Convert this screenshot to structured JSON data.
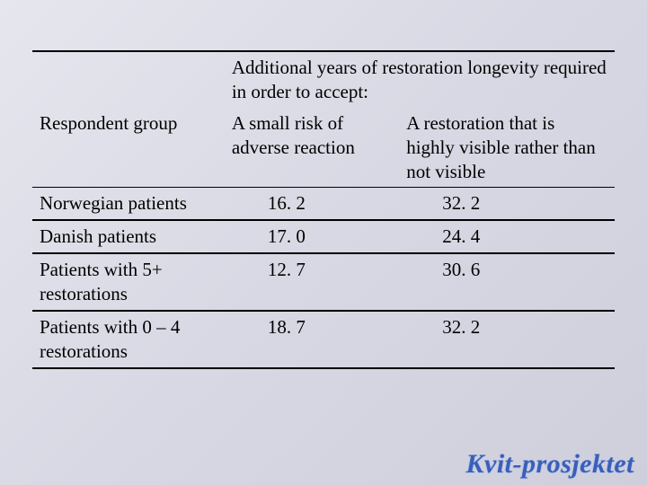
{
  "colors": {
    "background_gradient_start": "#e6e6ee",
    "background_gradient_mid": "#d8d8e4",
    "background_gradient_end": "#cfcfdc",
    "text": "#000000",
    "rule": "#000000",
    "watermark": "#3a5fb8",
    "watermark_outline": "#b8c4e6"
  },
  "typography": {
    "body_font": "Times New Roman",
    "body_size_pt": 16,
    "watermark_font": "Georgia italic bold",
    "watermark_size_pt": 22
  },
  "table": {
    "type": "table",
    "column_widths_pct": [
      33,
      30,
      37
    ],
    "span_header": "Additional years of restoration longevity required in order to accept:",
    "columns": [
      "Respondent group",
      "A small risk of adverse reaction",
      "A restoration that is highly visible rather than not visible"
    ],
    "rows": [
      {
        "label": "Norwegian patients",
        "v1": "16. 2",
        "v2": "32. 2"
      },
      {
        "label": "Danish patients",
        "v1": "17. 0",
        "v2": "24. 4"
      },
      {
        "label": "Patients with 5+ restorations",
        "v1": "12. 7",
        "v2": "30. 6"
      },
      {
        "label": "Patients with 0 – 4 restorations",
        "v1": "18. 7",
        "v2": "32. 2"
      }
    ]
  },
  "watermark": "Kvit-prosjektet"
}
